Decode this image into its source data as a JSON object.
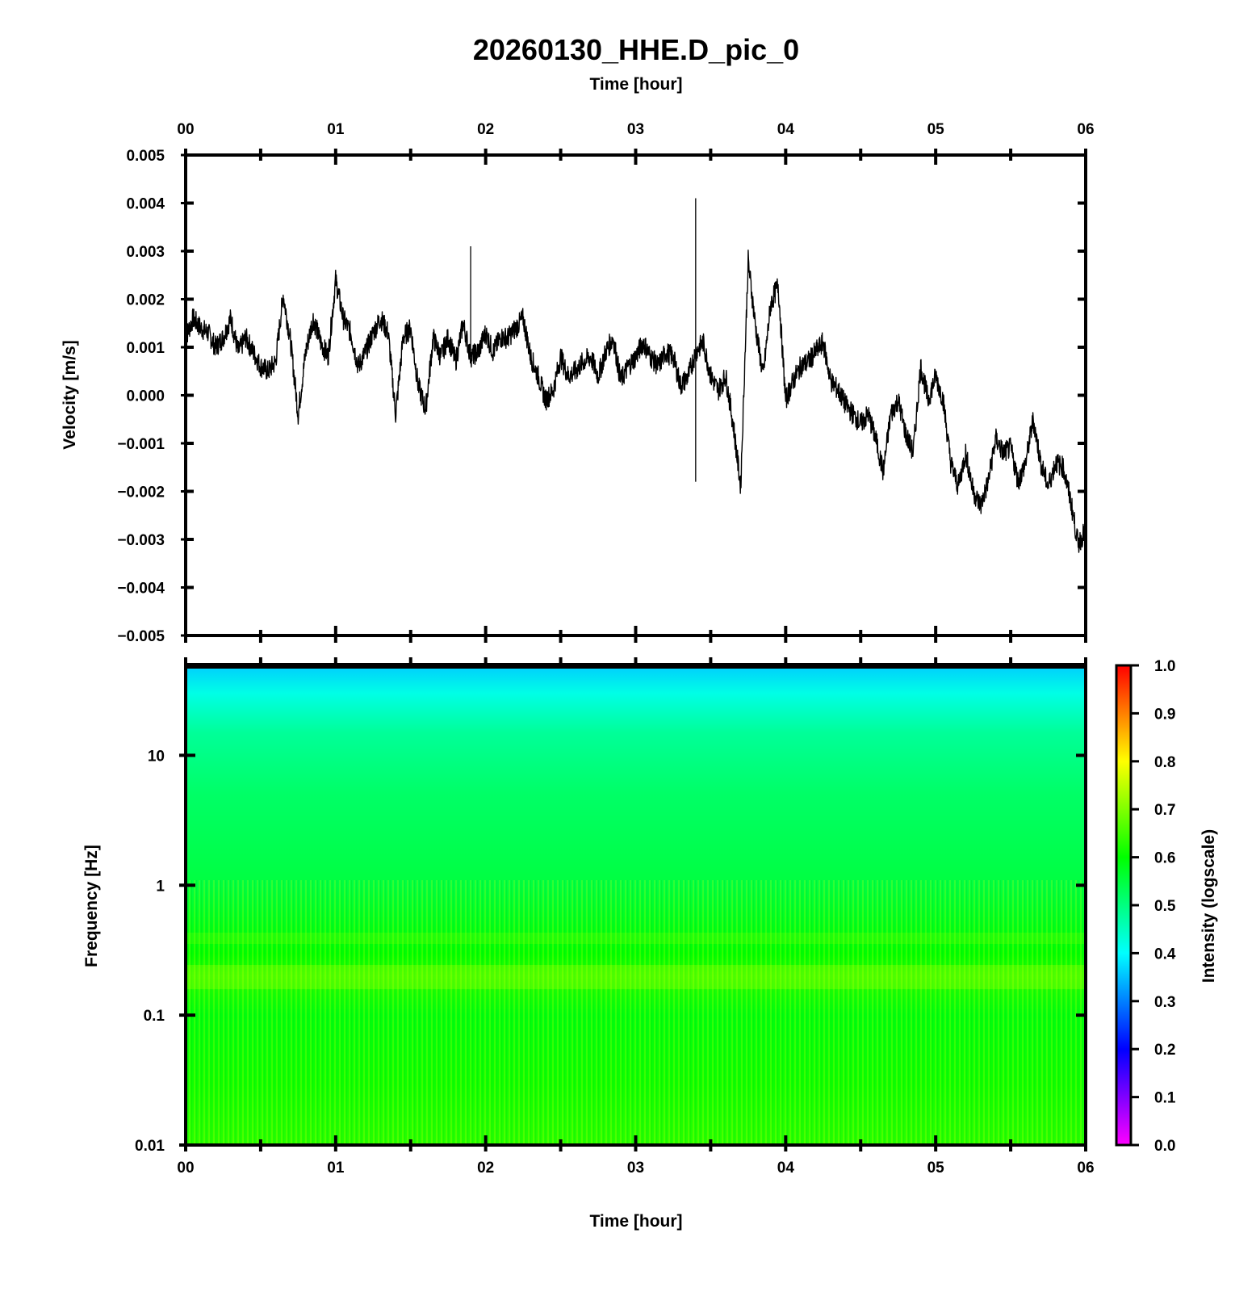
{
  "title": "20260130_HHE.D_pic_0",
  "chart_data": [
    {
      "type": "line",
      "panel": "waveform",
      "title": "20260130_HHE.D_pic_0",
      "xlabel": "Time [hour]",
      "ylabel": "Velocity [m/s]",
      "xlim": [
        0,
        6
      ],
      "ylim": [
        -0.005,
        0.005
      ],
      "x_ticks": [
        "00",
        "01",
        "02",
        "03",
        "04",
        "05",
        "06"
      ],
      "y_ticks": [
        "0.005",
        "0.004",
        "0.003",
        "0.002",
        "0.001",
        "0.000",
        "−0.001",
        "−0.002",
        "−0.003",
        "−0.004",
        "−0.005"
      ],
      "series": [
        {
          "name": "HHE velocity",
          "color": "#000000",
          "x": [
            0.0,
            0.05,
            0.1,
            0.15,
            0.2,
            0.25,
            0.3,
            0.35,
            0.4,
            0.45,
            0.5,
            0.55,
            0.6,
            0.65,
            0.7,
            0.75,
            0.8,
            0.85,
            0.9,
            0.95,
            1.0,
            1.05,
            1.1,
            1.15,
            1.2,
            1.25,
            1.3,
            1.35,
            1.4,
            1.45,
            1.5,
            1.55,
            1.6,
            1.65,
            1.7,
            1.75,
            1.8,
            1.85,
            1.9,
            1.95,
            2.0,
            2.05,
            2.1,
            2.15,
            2.2,
            2.25,
            2.3,
            2.35,
            2.4,
            2.45,
            2.5,
            2.55,
            2.6,
            2.65,
            2.7,
            2.75,
            2.8,
            2.85,
            2.9,
            2.95,
            3.0,
            3.05,
            3.1,
            3.15,
            3.2,
            3.25,
            3.3,
            3.35,
            3.4,
            3.45,
            3.5,
            3.55,
            3.6,
            3.65,
            3.7,
            3.75,
            3.8,
            3.85,
            3.9,
            3.95,
            4.0,
            4.05,
            4.1,
            4.15,
            4.2,
            4.25,
            4.3,
            4.35,
            4.4,
            4.45,
            4.5,
            4.55,
            4.6,
            4.65,
            4.7,
            4.75,
            4.8,
            4.85,
            4.9,
            4.95,
            5.0,
            5.05,
            5.1,
            5.15,
            5.2,
            5.25,
            5.3,
            5.35,
            5.4,
            5.45,
            5.5,
            5.55,
            5.6,
            5.65,
            5.7,
            5.75,
            5.8,
            5.85,
            5.9,
            5.95,
            6.0
          ],
          "y": [
            0.0012,
            0.0016,
            0.0014,
            0.0013,
            0.001,
            0.0012,
            0.0016,
            0.0009,
            0.0012,
            0.0009,
            0.0006,
            0.0005,
            0.0007,
            0.0021,
            0.0011,
            -0.0004,
            0.0009,
            0.0016,
            0.0011,
            0.0008,
            0.0024,
            0.0016,
            0.0013,
            0.0006,
            0.0009,
            0.0013,
            0.0016,
            0.0013,
            -0.0004,
            0.0012,
            0.0014,
            0.0002,
            -0.0003,
            0.0012,
            0.0008,
            0.0012,
            0.0007,
            0.0015,
            0.0008,
            0.0009,
            0.0013,
            0.0009,
            0.0012,
            0.0012,
            0.0014,
            0.0016,
            0.0008,
            0.0004,
            -0.0001,
            0.0001,
            0.0008,
            0.0004,
            0.0005,
            0.0007,
            0.0008,
            0.0004,
            0.0009,
            0.0012,
            0.0003,
            0.0006,
            0.0008,
            0.0011,
            0.0008,
            0.0006,
            0.0009,
            0.0008,
            0.0002,
            0.0004,
            0.0009,
            0.0011,
            0.0004,
            0.0001,
            0.0004,
            -0.0006,
            -0.0019,
            0.0028,
            0.0014,
            0.0004,
            0.0019,
            0.0023,
            -0.0001,
            0.0003,
            0.0006,
            0.0007,
            0.0009,
            0.0011,
            0.0003,
            0.0001,
            -0.0002,
            -0.0004,
            -0.0006,
            -0.0004,
            -0.0009,
            -0.0016,
            -0.0004,
            -0.0001,
            -0.0008,
            -0.0012,
            0.0006,
            -0.0001,
            0.0004,
            -0.0001,
            -0.0014,
            -0.0019,
            -0.0012,
            -0.002,
            -0.0023,
            -0.0018,
            -0.0009,
            -0.0012,
            -0.0011,
            -0.0018,
            -0.0014,
            -0.0005,
            -0.0014,
            -0.0019,
            -0.0014,
            -0.0015,
            -0.0022,
            -0.0031,
            -0.0028
          ],
          "spikes": [
            {
              "x": 1.9,
              "y": 0.0031
            },
            {
              "x": 3.4,
              "y": 0.0041
            },
            {
              "x": 3.4,
              "y": -0.0018
            }
          ]
        }
      ]
    },
    {
      "type": "heatmap",
      "panel": "spectrogram",
      "xlabel": "Time [hour]",
      "ylabel": "Frequency [Hz]",
      "xlim": [
        0,
        6
      ],
      "ylim": [
        0.01,
        50
      ],
      "y_scale": "log",
      "x_ticks": [
        "00",
        "01",
        "02",
        "03",
        "04",
        "05",
        "06"
      ],
      "y_ticks": [
        "10",
        "1",
        "0.1",
        "0.01"
      ],
      "colorbar": {
        "label": "Intensity (logscale)",
        "range": [
          0.0,
          1.0
        ],
        "ticks": [
          "1.0",
          "0.9",
          "0.8",
          "0.7",
          "0.6",
          "0.5",
          "0.4",
          "0.3",
          "0.2",
          "0.1",
          "0.0"
        ],
        "colors": [
          "#ff00ff",
          "#8000ff",
          "#0000ff",
          "#0080ff",
          "#00ffff",
          "#00ff80",
          "#00ff00",
          "#80ff00",
          "#ffff00",
          "#ff8000",
          "#ff0000"
        ]
      },
      "intensity_profile": [
        {
          "freq_hz": 50,
          "intensity": 0.36
        },
        {
          "freq_hz": 30,
          "intensity": 0.42
        },
        {
          "freq_hz": 15,
          "intensity": 0.48
        },
        {
          "freq_hz": 5,
          "intensity": 0.52
        },
        {
          "freq_hz": 1,
          "intensity": 0.55
        },
        {
          "freq_hz": 0.3,
          "intensity": 0.6
        },
        {
          "freq_hz": 0.2,
          "intensity": 0.63
        },
        {
          "freq_hz": 0.1,
          "intensity": 0.59
        },
        {
          "freq_hz": 0.03,
          "intensity": 0.61
        },
        {
          "freq_hz": 0.01,
          "intensity": 0.63
        }
      ]
    }
  ]
}
